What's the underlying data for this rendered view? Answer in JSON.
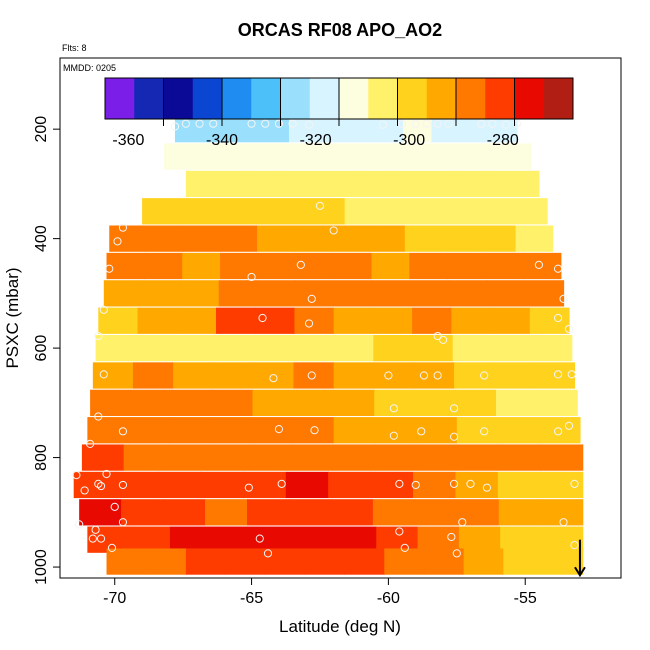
{
  "chart_data": {
    "type": "heatmap",
    "title": "ORCAS RF08 APO_AO2",
    "flights_label": "Flts: 8",
    "date_label": "MMDD: 0205",
    "xlabel": "Latitude (deg N)",
    "ylabel": "PSXC (mbar)",
    "xlim": [
      -72,
      -51.5
    ],
    "ylim": [
      1020,
      70
    ],
    "y_reversed": true,
    "grid": false,
    "x_ticks": [
      -70,
      -65,
      -60,
      -55
    ],
    "x_tick_labels": [
      "-70",
      "-65",
      "-60",
      "-55"
    ],
    "y_ticks": [
      200,
      400,
      600,
      800,
      1000
    ],
    "y_tick_labels": [
      "200",
      "400",
      "600",
      "800",
      "1000"
    ],
    "colorbar": {
      "min": -365,
      "max": -265,
      "ticks": [
        -360,
        -340,
        -320,
        -300,
        -280
      ],
      "tick_labels": [
        "-360",
        "-340",
        "-320",
        "-300",
        "-280"
      ],
      "colors": [
        "#7a1ee8",
        "#1428b4",
        "#0a0a96",
        "#0a46d2",
        "#1e8cf0",
        "#4cc0f8",
        "#9ae0fc",
        "#d8f4ff",
        "#fdfde0",
        "#fff26a",
        "#ffd21e",
        "#ffa800",
        "#ff7800",
        "#ff3c00",
        "#e80a00",
        "#b01e14"
      ]
    },
    "rows": [
      {
        "p": 200,
        "lat_min": -67.8,
        "lat_max": -55.3,
        "values": [
          -325,
          -326,
          -324,
          -322,
          -320,
          -318,
          -317,
          -316,
          -315,
          -316,
          -318,
          -320
        ]
      },
      {
        "p": 250,
        "lat_min": -68.2,
        "lat_max": -54.8,
        "values": [
          -315,
          -313,
          -312,
          -311,
          -310,
          -310,
          -311,
          -312,
          -313,
          -314,
          -313,
          -312
        ]
      },
      {
        "p": 300,
        "lat_min": -67.4,
        "lat_max": -54.5,
        "values": [
          -306,
          -305,
          -304,
          -304,
          -303,
          -303,
          -304,
          -305,
          -305,
          -306,
          -307,
          -308
        ]
      },
      {
        "p": 350,
        "lat_min": -69.0,
        "lat_max": -54.2,
        "values": [
          -298,
          -299,
          -300,
          -301,
          -301,
          -302,
          -303,
          -304,
          -305,
          -306,
          -306,
          -307
        ]
      },
      {
        "p": 400,
        "lat_min": -70.2,
        "lat_max": -54.0,
        "values": [
          -286,
          -287,
          -289,
          -290,
          -291,
          -292,
          -294,
          -295,
          -297,
          -299,
          -302,
          -304
        ]
      },
      {
        "p": 450,
        "lat_min": -70.3,
        "lat_max": -53.7,
        "values": [
          -289,
          -290,
          -291,
          -290,
          -289,
          -289,
          -290,
          -291,
          -290,
          -289,
          -289,
          -288
        ]
      },
      {
        "p": 500,
        "lat_min": -70.4,
        "lat_max": -53.6,
        "values": [
          -293,
          -295,
          -293,
          -290,
          -289,
          -288,
          -288,
          -288,
          -288,
          -288,
          -289,
          -290
        ]
      },
      {
        "p": 550,
        "lat_min": -70.6,
        "lat_max": -53.4,
        "values": [
          -300,
          -296,
          -292,
          -282,
          -278,
          -286,
          -292,
          -291,
          -290,
          -292,
          -296,
          -300
        ]
      },
      {
        "p": 600,
        "lat_min": -70.7,
        "lat_max": -53.3,
        "values": [
          -305,
          -304,
          -303,
          -304,
          -304,
          -303,
          -303,
          -302,
          -302,
          -303,
          -304,
          -305
        ]
      },
      {
        "p": 650,
        "lat_min": -70.8,
        "lat_max": -53.2,
        "values": [
          -291,
          -290,
          -291,
          -294,
          -292,
          -290,
          -292,
          -294,
          -296,
          -298,
          -300,
          -302
        ]
      },
      {
        "p": 700,
        "lat_min": -70.9,
        "lat_max": -53.1,
        "values": [
          -286,
          -287,
          -289,
          -290,
          -292,
          -294,
          -296,
          -298,
          -300,
          -302,
          -303,
          -304
        ]
      },
      {
        "p": 750,
        "lat_min": -71.0,
        "lat_max": -53.0,
        "values": [
          -290,
          -289,
          -288,
          -288,
          -289,
          -290,
          -292,
          -294,
          -296,
          -298,
          -299,
          -300
        ]
      },
      {
        "p": 800,
        "lat_min": -71.2,
        "lat_max": -52.9,
        "values": [
          -283,
          -284,
          -285,
          -286,
          -287,
          -287,
          -288,
          -288,
          -288,
          -288,
          -289,
          -290
        ]
      },
      {
        "p": 850,
        "lat_min": -71.5,
        "lat_max": -52.9,
        "values": [
          -278,
          -280,
          -282,
          -283,
          -279,
          -276,
          -278,
          -283,
          -287,
          -292,
          -297,
          -300
        ]
      },
      {
        "p": 900,
        "lat_min": -71.3,
        "lat_max": -52.9,
        "values": [
          -276,
          -278,
          -282,
          -285,
          -283,
          -280,
          -281,
          -284,
          -287,
          -290,
          -293,
          -296
        ]
      },
      {
        "p": 950,
        "lat_min": -71.0,
        "lat_max": -52.9,
        "values": [
          -282,
          -280,
          -277,
          -274,
          -272,
          -273,
          -276,
          -280,
          -286,
          -292,
          -297,
          -302
        ]
      },
      {
        "p": 990,
        "lat_min": -70.3,
        "lat_max": -52.9,
        "values": [
          -285,
          -284,
          -283,
          -281,
          -279,
          -279,
          -281,
          -284,
          -288,
          -293,
          -298,
          -302
        ]
      }
    ],
    "points": [
      [
        -67.8,
        195
      ],
      [
        -67.4,
        190
      ],
      [
        -66.9,
        190
      ],
      [
        -66.4,
        190
      ],
      [
        -65.0,
        190
      ],
      [
        -64.5,
        190
      ],
      [
        -64.0,
        190
      ],
      [
        -63.5,
        190
      ],
      [
        -62.9,
        192
      ],
      [
        -60.2,
        192
      ],
      [
        -59.5,
        190
      ],
      [
        -59.0,
        190
      ],
      [
        -58.6,
        190
      ],
      [
        -58.2,
        190
      ],
      [
        -57.8,
        190
      ],
      [
        -56.6,
        190
      ],
      [
        -56.2,
        190
      ],
      [
        -55.7,
        192
      ],
      [
        -55.3,
        190
      ],
      [
        -62.5,
        340
      ],
      [
        -62.0,
        385
      ],
      [
        -69.7,
        380
      ],
      [
        -69.9,
        405
      ],
      [
        -70.2,
        455
      ],
      [
        -63.2,
        448
      ],
      [
        -65.0,
        470
      ],
      [
        -54.5,
        448
      ],
      [
        -53.8,
        455
      ],
      [
        -53.6,
        510
      ],
      [
        -62.8,
        510
      ],
      [
        -70.4,
        530
      ],
      [
        -64.6,
        545
      ],
      [
        -62.9,
        555
      ],
      [
        -53.8,
        545
      ],
      [
        -53.4,
        565
      ],
      [
        -70.6,
        578
      ],
      [
        -58.2,
        578
      ],
      [
        -58.0,
        585
      ],
      [
        -64.2,
        655
      ],
      [
        -62.8,
        650
      ],
      [
        -70.4,
        648
      ],
      [
        -60.0,
        650
      ],
      [
        -58.7,
        650
      ],
      [
        -58.2,
        650
      ],
      [
        -56.5,
        650
      ],
      [
        -53.8,
        648
      ],
      [
        -53.3,
        648
      ],
      [
        -70.6,
        725
      ],
      [
        -59.8,
        710
      ],
      [
        -57.6,
        710
      ],
      [
        -70.9,
        775
      ],
      [
        -69.7,
        752
      ],
      [
        -64.0,
        748
      ],
      [
        -62.7,
        750
      ],
      [
        -59.8,
        760
      ],
      [
        -58.8,
        752
      ],
      [
        -57.6,
        762
      ],
      [
        -56.5,
        752
      ],
      [
        -53.8,
        752
      ],
      [
        -53.4,
        742
      ],
      [
        -71.4,
        832
      ],
      [
        -71.1,
        860
      ],
      [
        -70.6,
        848
      ],
      [
        -70.5,
        852
      ],
      [
        -70.3,
        830
      ],
      [
        -70.0,
        890
      ],
      [
        -69.7,
        850
      ],
      [
        -65.1,
        855
      ],
      [
        -63.9,
        848
      ],
      [
        -59.6,
        848
      ],
      [
        -59.0,
        850
      ],
      [
        -57.6,
        848
      ],
      [
        -57.0,
        848
      ],
      [
        -56.4,
        855
      ],
      [
        -53.2,
        848
      ],
      [
        -71.3,
        922
      ],
      [
        -70.8,
        948
      ],
      [
        -70.7,
        932
      ],
      [
        -70.5,
        948
      ],
      [
        -69.7,
        918
      ],
      [
        -64.7,
        948
      ],
      [
        -64.4,
        975
      ],
      [
        -59.6,
        935
      ],
      [
        -59.4,
        965
      ],
      [
        -57.7,
        945
      ],
      [
        -57.5,
        975
      ],
      [
        -57.3,
        918
      ],
      [
        -53.6,
        918
      ],
      [
        -70.1,
        965
      ],
      [
        -53.2,
        960
      ]
    ],
    "arrow": {
      "lat": -53.0,
      "p_from": 950,
      "p_to": 1015
    }
  }
}
